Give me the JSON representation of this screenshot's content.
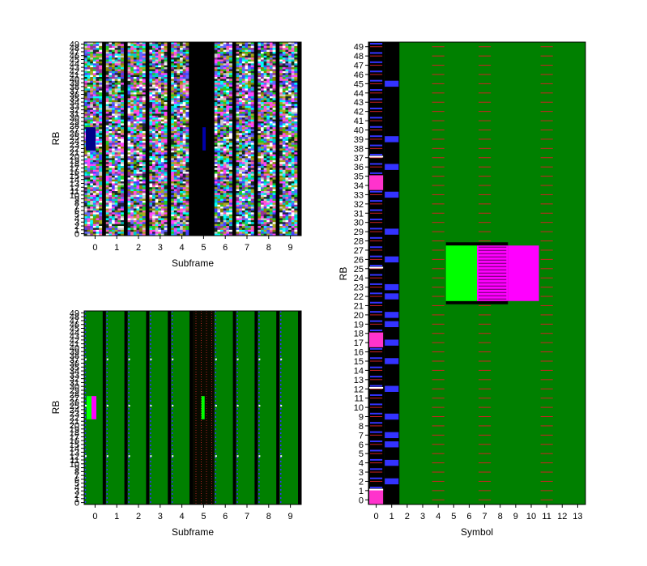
{
  "chart_data": [
    {
      "type": "heatmap",
      "panel": "top-left",
      "xlabel": "Subframe",
      "ylabel": "RB",
      "x_ticks": [
        "0",
        "1",
        "2",
        "3",
        "4",
        "5",
        "6",
        "7",
        "8",
        "9"
      ],
      "y_range": [
        0,
        49
      ],
      "background_color": "#000000",
      "content": "random multicolor noise per subframe, black separators between subframes",
      "empty_subframe": 5,
      "highlights": [
        {
          "subframe": 0,
          "rb_range": [
            22,
            27
          ],
          "color": "#000088"
        },
        {
          "subframe": 5,
          "rb_range": [
            22,
            27
          ],
          "color": "#0000aa"
        }
      ]
    },
    {
      "type": "heatmap",
      "panel": "bottom-left",
      "xlabel": "Subframe",
      "ylabel": "RB",
      "x_ticks": [
        "0",
        "1",
        "2",
        "3",
        "4",
        "5",
        "6",
        "7",
        "8",
        "9"
      ],
      "y_range": [
        0,
        49
      ],
      "background_color": "#008000",
      "marker_rbs": [
        12,
        25,
        37
      ],
      "special_subframe": 5,
      "highlights": [
        {
          "subframe": 0,
          "rb_range": [
            22,
            27
          ],
          "colors": [
            "#00ff00",
            "#ff00ff"
          ]
        },
        {
          "subframe": 5,
          "rb_range": [
            22,
            27
          ],
          "colors": [
            "#00ff00"
          ]
        }
      ]
    },
    {
      "type": "heatmap",
      "panel": "right",
      "xlabel": "Symbol",
      "ylabel": "RB",
      "x_ticks": [
        "0",
        "1",
        "2",
        "3",
        "4",
        "5",
        "6",
        "7",
        "8",
        "9",
        "10",
        "11",
        "12",
        "13"
      ],
      "y_range": [
        0,
        49
      ],
      "background_color": "#008000",
      "control_symbols": [
        0,
        1
      ],
      "reference_symbols": [
        4,
        7,
        11
      ],
      "blue_rbs_symbol1": [
        2,
        4,
        6,
        7,
        9,
        12,
        15,
        17,
        19,
        20,
        22,
        23,
        26,
        29,
        33,
        36,
        39,
        45
      ],
      "magenta_rbs_symbol0": [
        0,
        17,
        34
      ],
      "white_rbs_symbol0": [
        1,
        12,
        25,
        37
      ],
      "highlight_rb_range": [
        22,
        27
      ],
      "highlights": [
        {
          "symbols": [
            5,
            6
          ],
          "color": "#00ff00"
        },
        {
          "symbols": [
            7,
            8
          ],
          "color": "#ff00ff",
          "pattern": "stripes"
        },
        {
          "symbols": [
            9,
            10
          ],
          "color": "#ff00ff"
        }
      ]
    }
  ]
}
